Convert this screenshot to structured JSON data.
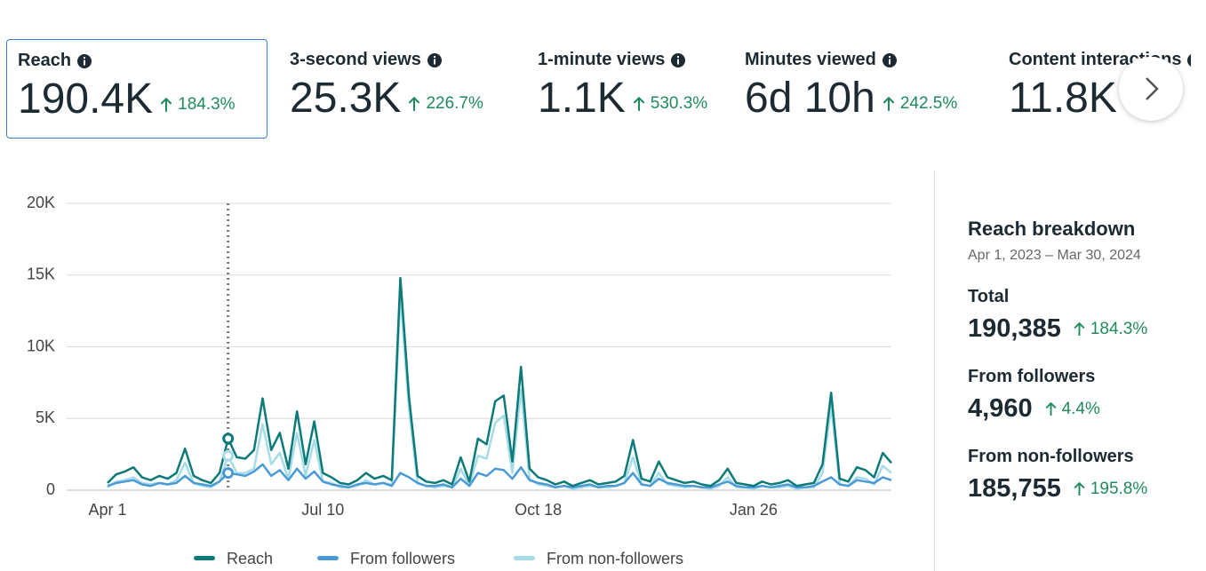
{
  "metrics": [
    {
      "label": "Reach",
      "value": "190.4K",
      "change": "184.3%"
    },
    {
      "label": "3-second views",
      "value": "25.3K",
      "change": "226.7%"
    },
    {
      "label": "1-minute views",
      "value": "1.1K",
      "change": "530.3%"
    },
    {
      "label": "Minutes viewed",
      "value": "6d 10h",
      "change": "242.5%"
    },
    {
      "label": "Content interactions",
      "value": "11.8K"
    }
  ],
  "chart_data": {
    "type": "line",
    "categories": [
      "Apr 1",
      null,
      null,
      null,
      null,
      null,
      null,
      null,
      null,
      null,
      null,
      null,
      null,
      null,
      null,
      null,
      null,
      null,
      null,
      null,
      null,
      null,
      null,
      null,
      null,
      "Jul 10",
      null,
      null,
      null,
      null,
      null,
      null,
      null,
      null,
      null,
      null,
      null,
      null,
      null,
      null,
      null,
      null,
      null,
      null,
      null,
      null,
      null,
      null,
      null,
      null,
      "Oct 18",
      null,
      null,
      null,
      null,
      null,
      null,
      null,
      null,
      null,
      null,
      null,
      null,
      null,
      null,
      null,
      null,
      null,
      null,
      null,
      null,
      null,
      null,
      null,
      null,
      "Jan 26",
      null,
      null,
      null,
      null,
      null,
      null,
      null,
      null,
      null,
      null,
      null,
      null,
      null,
      null,
      null,
      null
    ],
    "series": [
      {
        "name": "Reach",
        "color": "#0b7a78",
        "values": [
          500,
          1100,
          1300,
          1600,
          900,
          700,
          1000,
          800,
          1200,
          2900,
          1000,
          700,
          500,
          1200,
          3600,
          2300,
          2200,
          2800,
          6400,
          2800,
          4000,
          1500,
          5500,
          1800,
          4800,
          1200,
          900,
          500,
          400,
          700,
          1200,
          800,
          1000,
          700,
          14800,
          6500,
          1000,
          600,
          500,
          700,
          400,
          2300,
          600,
          3600,
          3200,
          6200,
          6600,
          2000,
          8600,
          1500,
          900,
          700,
          400,
          600,
          300,
          500,
          700,
          400,
          500,
          600,
          1000,
          3500,
          800,
          600,
          2000,
          900,
          700,
          500,
          600,
          400,
          300,
          700,
          1500,
          500,
          400,
          300,
          600,
          400,
          500,
          700,
          300,
          400,
          500,
          1800,
          6800,
          800,
          600,
          1600,
          1400,
          900,
          2600,
          1900
        ]
      },
      {
        "name": "From followers",
        "color": "#4a9ad6",
        "values": [
          300,
          500,
          600,
          700,
          400,
          300,
          500,
          400,
          500,
          1000,
          500,
          400,
          300,
          600,
          1200,
          1100,
          1000,
          1300,
          1800,
          1000,
          1400,
          700,
          1500,
          800,
          1300,
          600,
          400,
          300,
          200,
          400,
          500,
          400,
          500,
          300,
          1200,
          900,
          500,
          300,
          300,
          400,
          200,
          800,
          300,
          1200,
          1000,
          1500,
          1400,
          800,
          1600,
          700,
          500,
          400,
          200,
          300,
          200,
          300,
          400,
          200,
          300,
          300,
          500,
          1200,
          400,
          300,
          800,
          500,
          400,
          300,
          300,
          200,
          200,
          400,
          600,
          300,
          200,
          200,
          300,
          200,
          300,
          400,
          200,
          200,
          300,
          600,
          900,
          400,
          300,
          700,
          600,
          500,
          900,
          700
        ]
      },
      {
        "name": "From non-followers",
        "color": "#a6dbe8",
        "values": [
          200,
          600,
          700,
          900,
          500,
          400,
          500,
          400,
          700,
          1900,
          500,
          300,
          200,
          600,
          2400,
          1200,
          1200,
          1500,
          4600,
          1800,
          2600,
          800,
          4000,
          1000,
          3500,
          600,
          500,
          200,
          200,
          300,
          700,
          400,
          500,
          400,
          13600,
          5600,
          500,
          300,
          200,
          300,
          200,
          1500,
          300,
          2400,
          2200,
          4700,
          5200,
          1200,
          7000,
          800,
          400,
          300,
          200,
          300,
          100,
          200,
          300,
          200,
          200,
          300,
          500,
          2300,
          400,
          300,
          1200,
          400,
          300,
          200,
          300,
          200,
          100,
          300,
          900,
          200,
          200,
          100,
          300,
          200,
          200,
          300,
          100,
          200,
          200,
          1200,
          5900,
          400,
          300,
          900,
          800,
          400,
          1700,
          1200
        ]
      }
    ],
    "ylim": [
      0,
      20000
    ],
    "yticks": [
      0,
      {
        "value": 5000,
        "label": "5K"
      },
      {
        "value": 10000,
        "label": "10K"
      },
      {
        "value": 15000,
        "label": "15K"
      },
      {
        "value": 20000,
        "label": "20K"
      }
    ],
    "grid": true
  },
  "breakdown": {
    "title": "Reach breakdown",
    "date_range": "Apr 1, 2023 – Mar 30, 2024",
    "items": [
      {
        "label": "Total",
        "value": "190,385",
        "change": "184.3%"
      },
      {
        "label": "From followers",
        "value": "4,960",
        "change": "4.4%"
      },
      {
        "label": "From non-followers",
        "value": "185,755",
        "change": "195.8%"
      }
    ]
  }
}
